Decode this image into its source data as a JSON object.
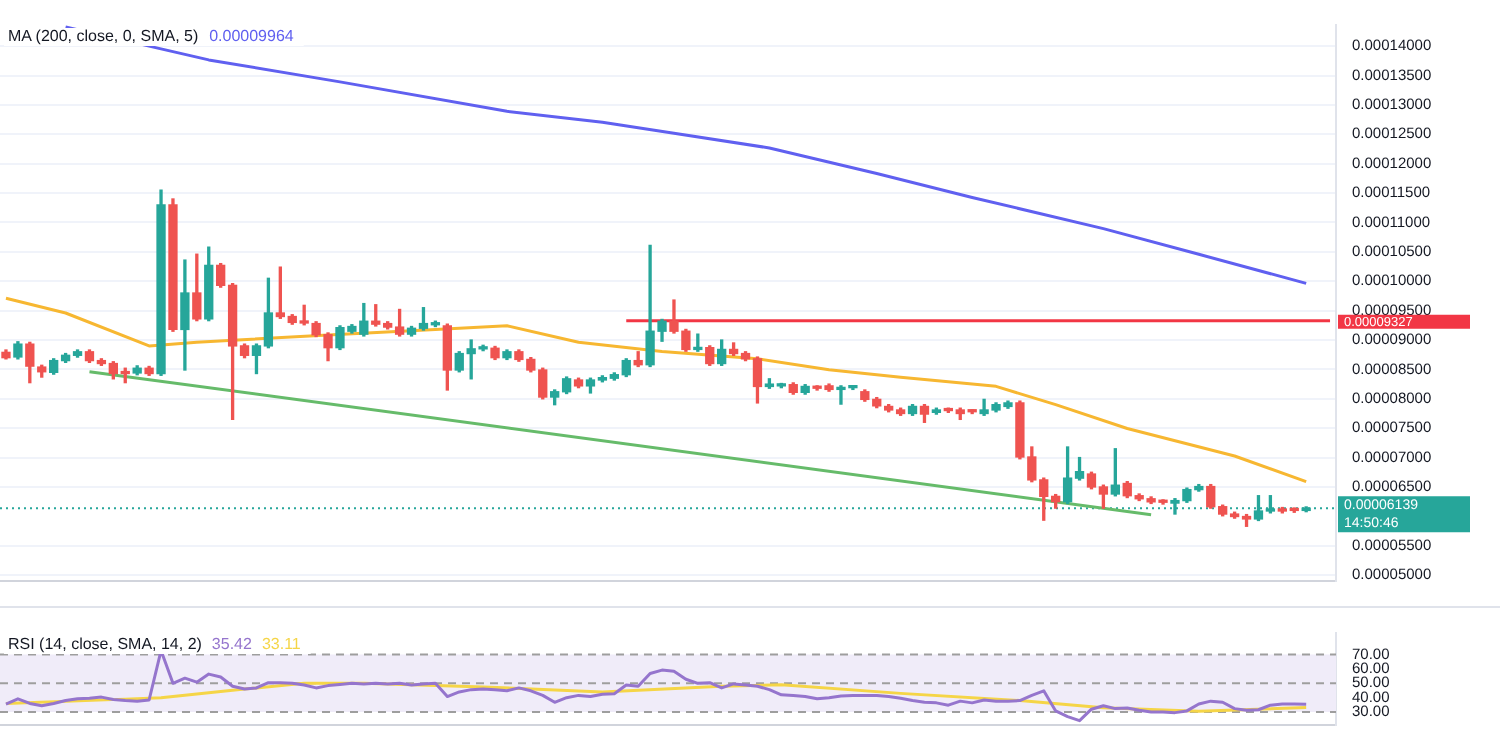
{
  "chart_data": [
    {
      "type": "candlestick",
      "categories": [
        null,
        null,
        null,
        null,
        null,
        null,
        null,
        null,
        null,
        null,
        null,
        null,
        null,
        null,
        null,
        null,
        null,
        null,
        null,
        null,
        null,
        null,
        null,
        null,
        null,
        null,
        null,
        null,
        null,
        null,
        null,
        null,
        null,
        null,
        null,
        null,
        null,
        null,
        null,
        null,
        null,
        null,
        null,
        null,
        null,
        null,
        null,
        null,
        null,
        null,
        null,
        null,
        null,
        null,
        null,
        null,
        null,
        null,
        null,
        null,
        null,
        null,
        null,
        null,
        null,
        null,
        null,
        null,
        null,
        null,
        null,
        null,
        null,
        null,
        null,
        null,
        null,
        null,
        null,
        null,
        null,
        null,
        null,
        null,
        null,
        null,
        null,
        null,
        null,
        null,
        null,
        null,
        null,
        null,
        null,
        null,
        null,
        null,
        null,
        null,
        null,
        null,
        null,
        null,
        null,
        null,
        null,
        null,
        null,
        null,
        null,
        null
      ],
      "ohlc": [
        [
          8.79e-05,
          8.83e-05,
          8.68e-05,
          8.7e-05
        ],
        [
          8.712e-05,
          8.97e-05,
          8.68e-05,
          8.93e-05
        ],
        [
          8.93e-05,
          8.96e-05,
          8.275e-05,
          8.556e-05
        ],
        [
          8.54e-05,
          8.57e-05,
          8.37e-05,
          8.46e-05
        ],
        [
          8.45e-05,
          8.68e-05,
          8.42e-05,
          8.65e-05
        ],
        [
          8.65e-05,
          8.77e-05,
          8.62e-05,
          8.74e-05
        ],
        [
          8.74e-05,
          8.83e-05,
          8.71e-05,
          8.8e-05
        ],
        [
          8.8e-05,
          8.83e-05,
          8.62e-05,
          8.65e-05
        ],
        [
          8.65e-05,
          8.68e-05,
          8.57e-05,
          8.6e-05
        ],
        [
          8.6e-05,
          8.63e-05,
          8.34e-05,
          8.43e-05
        ],
        [
          8.45e-05,
          8.52e-05,
          8.275e-05,
          8.43e-05
        ],
        [
          8.44e-05,
          8.56e-05,
          8.41e-05,
          8.52e-05
        ],
        [
          8.52e-05,
          8.55e-05,
          8.4e-05,
          8.43e-05
        ],
        [
          8.43e-05,
          0.0001155,
          8.4e-05,
          0.000113
        ],
        [
          0.000113,
          0.000114,
          9.15e-05,
          9.18e-05
        ],
        [
          9.18e-05,
          0.0001036,
          8.49e-05,
          9.8e-05
        ],
        [
          9.8e-05,
          0.0001046,
          9.33e-05,
          9.36e-05
        ],
        [
          9.36e-05,
          0.0001058,
          9.33e-05,
          0.0001027
        ],
        [
          0.0001027,
          0.000103,
          9.9e-05,
          9.93e-05
        ],
        [
          9.93e-05,
          9.96e-05,
          7.65e-05,
          8.9e-05
        ],
        [
          8.9e-05,
          8.93e-05,
          8.7e-05,
          8.74e-05
        ],
        [
          8.74e-05,
          8.93e-05,
          8.43e-05,
          8.9e-05
        ],
        [
          8.9e-05,
          0.0001005,
          8.87e-05,
          9.46e-05
        ],
        [
          9.46e-05,
          0.0001024,
          9.37e-05,
          9.4e-05
        ],
        [
          9.4e-05,
          9.43e-05,
          9.27e-05,
          9.3e-05
        ],
        [
          9.3e-05,
          9.59e-05,
          9.26e-05,
          9.29e-05
        ],
        [
          9.28e-05,
          9.31e-05,
          9.06e-05,
          9.09e-05
        ],
        [
          9.09e-05,
          9.12e-05,
          8.65e-05,
          8.87e-05
        ],
        [
          8.87e-05,
          9.24e-05,
          8.84e-05,
          9.21e-05
        ],
        [
          9.15e-05,
          9.26e-05,
          9.12e-05,
          9.23e-05
        ],
        [
          9.1e-05,
          9.62e-05,
          9.07e-05,
          9.32e-05
        ],
        [
          9.32e-05,
          9.6e-05,
          9.24e-05,
          9.27e-05
        ],
        [
          9.28e-05,
          9.31e-05,
          9.19e-05,
          9.22e-05
        ],
        [
          9.22e-05,
          9.52e-05,
          9.07e-05,
          9.1e-05
        ],
        [
          9.1e-05,
          9.23e-05,
          9.07e-05,
          9.2e-05
        ],
        [
          9.2e-05,
          9.55e-05,
          9.17e-05,
          9.28e-05
        ],
        [
          9.26e-05,
          9.32e-05,
          9.23e-05,
          9.29e-05
        ],
        [
          9.24e-05,
          9.27e-05,
          8.15e-05,
          8.49e-05
        ],
        [
          8.49e-05,
          8.8e-05,
          8.46e-05,
          8.77e-05
        ],
        [
          8.77e-05,
          9e-05,
          8.34e-05,
          8.85e-05
        ],
        [
          8.85e-05,
          8.91e-05,
          8.82e-05,
          8.88e-05
        ],
        [
          8.86e-05,
          8.89e-05,
          8.67e-05,
          8.7e-05
        ],
        [
          8.7e-05,
          8.83e-05,
          8.67e-05,
          8.8e-05
        ],
        [
          8.8e-05,
          8.83e-05,
          8.64e-05,
          8.67e-05
        ],
        [
          8.67e-05,
          8.7e-05,
          8.46e-05,
          8.49e-05
        ],
        [
          8.49e-05,
          8.52e-05,
          8e-05,
          8.03e-05
        ],
        [
          8.03e-05,
          8.15e-05,
          7.9e-05,
          8.12e-05
        ],
        [
          8.12e-05,
          8.37e-05,
          8.09e-05,
          8.34e-05
        ],
        [
          8.32e-05,
          8.35e-05,
          8.19e-05,
          8.22e-05
        ],
        [
          8.22e-05,
          8.35e-05,
          8.1e-05,
          8.32e-05
        ],
        [
          8.32e-05,
          8.39e-05,
          8.29e-05,
          8.36e-05
        ],
        [
          8.35e-05,
          8.44e-05,
          8.32e-05,
          8.41e-05
        ],
        [
          8.41e-05,
          8.68e-05,
          8.38e-05,
          8.65e-05
        ],
        [
          8.65e-05,
          8.8e-05,
          8.55e-05,
          8.58e-05
        ],
        [
          8.58e-05,
          0.0001061,
          8.55e-05,
          9.15e-05
        ],
        [
          9.15e-05,
          9.35e-05,
          8.98e-05,
          9.32e-05
        ],
        [
          9.32e-05,
          9.68e-05,
          9.12e-05,
          9.15e-05
        ],
        [
          9.15e-05,
          9.18e-05,
          8.81e-05,
          8.84e-05
        ],
        [
          8.84e-05,
          9.1e-05,
          8.81e-05,
          8.87e-05
        ],
        [
          8.87e-05,
          8.9e-05,
          8.57e-05,
          8.6e-05
        ],
        [
          8.6e-05,
          9e-05,
          8.57e-05,
          8.84e-05
        ],
        [
          8.84e-05,
          8.95e-05,
          8.74e-05,
          8.77e-05
        ],
        [
          8.77e-05,
          8.8e-05,
          8.65e-05,
          8.68e-05
        ],
        [
          8.68e-05,
          8.71e-05,
          7.93e-05,
          8.21e-05
        ],
        [
          8.21e-05,
          8.34e-05,
          8.18e-05,
          8.25e-05
        ],
        [
          8.22e-05,
          8.26e-05,
          8.19e-05,
          8.23e-05
        ],
        [
          8.24e-05,
          8.27e-05,
          8.08e-05,
          8.11e-05
        ],
        [
          8.11e-05,
          8.24e-05,
          8.08e-05,
          8.21e-05
        ],
        [
          8.19e-05,
          8.22e-05,
          8.15e-05,
          8.18e-05
        ],
        [
          8.22e-05,
          8.25e-05,
          8.13e-05,
          8.16e-05
        ],
        [
          8.16e-05,
          8.22e-05,
          7.91e-05,
          8.19e-05
        ],
        [
          8.19e-05,
          8.22e-05,
          8.16e-05,
          8.19e-05
        ],
        [
          8.12e-05,
          8.15e-05,
          7.96e-05,
          7.99e-05
        ],
        [
          7.99e-05,
          8.02e-05,
          7.85e-05,
          7.88e-05
        ],
        [
          7.87e-05,
          7.9e-05,
          7.78e-05,
          7.81e-05
        ],
        [
          7.81e-05,
          7.84e-05,
          7.72e-05,
          7.75e-05
        ],
        [
          7.75e-05,
          7.9e-05,
          7.72e-05,
          7.87e-05
        ],
        [
          7.87e-05,
          7.9e-05,
          7.6e-05,
          7.74e-05
        ],
        [
          7.77e-05,
          7.84e-05,
          7.74e-05,
          7.81e-05
        ],
        [
          7.81e-05,
          7.84e-05,
          7.77e-05,
          7.8e-05
        ],
        [
          7.81e-05,
          7.84e-05,
          7.65e-05,
          7.75e-05
        ],
        [
          7.79e-05,
          7.81e-05,
          7.75e-05,
          7.78e-05
        ],
        [
          7.75e-05,
          7.99e-05,
          7.72e-05,
          7.81e-05
        ],
        [
          7.81e-05,
          7.93e-05,
          7.78e-05,
          7.9e-05
        ],
        [
          7.87e-05,
          7.96e-05,
          7.84e-05,
          7.93e-05
        ],
        [
          7.93e-05,
          7.96e-05,
          6.98e-05,
          7.01e-05
        ],
        [
          7.01e-05,
          7.18e-05,
          6.59e-05,
          6.62e-05
        ],
        [
          6.62e-05,
          6.65e-05,
          5.935e-05,
          6.34e-05
        ],
        [
          6.34e-05,
          6.37e-05,
          6.14e-05,
          6.25e-05
        ],
        [
          6.25e-05,
          7.18e-05,
          6.22e-05,
          6.65e-05
        ],
        [
          6.65e-05,
          7e-05,
          6.62e-05,
          6.76e-05
        ],
        [
          6.72e-05,
          6.75e-05,
          6.47e-05,
          6.5e-05
        ],
        [
          6.5e-05,
          6.53e-05,
          6.14e-05,
          6.38e-05
        ],
        [
          6.38e-05,
          7.15e-05,
          6.35e-05,
          6.53e-05
        ],
        [
          6.559e-05,
          6.59e-05,
          6.32e-05,
          6.351e-05
        ],
        [
          6.351e-05,
          6.38e-05,
          6.27e-05,
          6.299e-05
        ],
        [
          6.299e-05,
          6.33e-05,
          6.22e-05,
          6.247e-05
        ],
        [
          6.247e-05,
          6.28e-05,
          6.21e-05,
          6.24e-05
        ],
        [
          6.226e-05,
          6.3e-05,
          6.04e-05,
          6.268e-05
        ],
        [
          6.268e-05,
          6.48e-05,
          6.24e-05,
          6.455e-05
        ],
        [
          6.455e-05,
          6.54e-05,
          6.43e-05,
          6.507e-05
        ],
        [
          6.507e-05,
          6.54e-05,
          6.14e-05,
          6.164e-05
        ],
        [
          6.164e-05,
          6.19e-05,
          6.01e-05,
          6.039e-05
        ],
        [
          6.039e-05,
          6.07e-05,
          5.97e-05,
          5.997e-05
        ],
        [
          5.997e-05,
          6.03e-05,
          5.831e-05,
          5.956e-05
        ],
        [
          5.956e-05,
          6.351e-05,
          5.93e-05,
          6.091e-05
        ],
        [
          6.091e-05,
          6.351e-05,
          6.06e-05,
          6.112e-05
        ],
        [
          6.122e-05,
          6.15e-05,
          6.06e-05,
          6.091e-05
        ],
        [
          6.112e-05,
          6.14e-05,
          6.07e-05,
          6.101e-05
        ],
        [
          6.101e-05,
          6.16e-05,
          6.08e-05,
          6.139e-05
        ],
        null,
        null
      ],
      "colors": [
        "#ef5350",
        "#26a69a",
        "#ef5350",
        "#ef5350",
        "#26a69a",
        "#26a69a",
        "#26a69a",
        "#ef5350",
        "#ef5350",
        "#ef5350",
        "#ef5350",
        "#26a69a",
        "#ef5350",
        "#26a69a",
        "#ef5350",
        "#26a69a",
        "#ef5350",
        "#26a69a",
        "#ef5350",
        "#ef5350",
        "#ef5350",
        "#26a69a",
        "#26a69a",
        "#ef5350",
        "#ef5350",
        "#ef5350",
        "#ef5350",
        "#ef5350",
        "#26a69a",
        "#26a69a",
        "#26a69a",
        "#ef5350",
        "#ef5350",
        "#ef5350",
        "#26a69a",
        "#26a69a",
        "#26a69a",
        "#ef5350",
        "#26a69a",
        "#26a69a",
        "#26a69a",
        "#ef5350",
        "#26a69a",
        "#ef5350",
        "#ef5350",
        "#ef5350",
        "#26a69a",
        "#26a69a",
        "#ef5350",
        "#26a69a",
        "#26a69a",
        "#26a69a",
        "#26a69a",
        "#ef5350",
        "#26a69a",
        "#26a69a",
        "#ef5350",
        "#ef5350",
        "#26a69a",
        "#ef5350",
        "#26a69a",
        "#ef5350",
        "#ef5350",
        "#ef5350",
        "#26a69a",
        "#26a69a",
        "#ef5350",
        "#26a69a",
        "#ef5350",
        "#ef5350",
        "#26a69a",
        "#26a69a",
        "#ef5350",
        "#ef5350",
        "#ef5350",
        "#ef5350",
        "#26a69a",
        "#ef5350",
        "#26a69a",
        "#ef5350",
        "#ef5350",
        "#ef5350",
        "#26a69a",
        "#26a69a",
        "#26a69a",
        "#ef5350",
        "#ef5350",
        "#ef5350",
        "#ef5350",
        "#26a69a",
        "#26a69a",
        "#ef5350",
        "#ef5350",
        "#26a69a",
        "#ef5350",
        "#ef5350",
        "#ef5350",
        "#ef5350",
        "#26a69a",
        "#26a69a",
        "#26a69a",
        "#ef5350",
        "#ef5350",
        "#ef5350",
        "#ef5350",
        "#26a69a",
        "#26a69a",
        "#ef5350",
        "#ef5350",
        "#26a69a",
        null,
        null
      ],
      "series": [
        {
          "type": "line",
          "name": "MA (200, close, 0, SMA, 5)",
          "color": "#6060f0",
          "values": [
            null,
            null,
            null,
            null,
            null,
            0.00014328,
            null,
            null,
            null,
            null,
            null,
            null,
            null,
            null,
            null,
            null,
            null,
            0.00013766,
            null,
            null,
            null,
            null,
            null,
            null,
            null,
            null,
            null,
            null,
            0.00013392,
            null,
            null,
            null,
            null,
            null,
            null,
            null,
            null,
            null,
            null,
            null,
            null,
            null,
            0.00012892,
            null,
            null,
            null,
            null,
            null,
            null,
            null,
            0.00012705,
            null,
            null,
            null,
            null,
            null,
            0.00012518,
            null,
            null,
            null,
            null,
            null,
            null,
            null,
            0.00012268,
            null,
            null,
            null,
            null,
            null,
            null,
            null,
            null,
            0.00011832,
            null,
            null,
            null,
            null,
            null,
            null,
            null,
            0.00011426,
            null,
            null,
            null,
            null,
            null,
            null,
            null,
            null,
            null,
            null,
            0.00010896,
            null,
            null,
            null,
            null,
            null,
            null,
            null,
            0.00010459,
            null,
            null,
            null,
            null,
            null,
            null,
            null,
            null,
            9.964e-05,
            null,
            null
          ]
        },
        {
          "type": "line",
          "color": "#f7b731",
          "values": [
            9.71e-05,
            null,
            null,
            null,
            null,
            9.46e-05,
            null,
            null,
            null,
            null,
            null,
            null,
            8.9e-05,
            null,
            null,
            null,
            8.961e-05,
            null,
            null,
            null,
            null,
            null,
            null,
            null,
            null,
            null,
            null,
            9.086e-05,
            null,
            null,
            null,
            null,
            null,
            null,
            null,
            null,
            9.18e-05,
            null,
            null,
            null,
            null,
            null,
            9.242e-05,
            null,
            null,
            null,
            null,
            null,
            8.961e-05,
            null,
            null,
            null,
            null,
            null,
            null,
            8.805e-05,
            null,
            null,
            null,
            null,
            null,
            null,
            null,
            8.68e-05,
            null,
            null,
            null,
            null,
            null,
            8.493e-05,
            null,
            null,
            null,
            null,
            null,
            8.368e-05,
            null,
            null,
            null,
            null,
            null,
            null,
            null,
            8.212e-05,
            null,
            null,
            null,
            null,
            7.9e-05,
            null,
            null,
            null,
            null,
            null,
            7.495e-05,
            null,
            null,
            null,
            null,
            null,
            null,
            null,
            null,
            7.027e-05,
            null,
            null,
            null,
            null,
            null,
            6.59e-05,
            null,
            null
          ]
        },
        {
          "type": "line",
          "color": "#66bb6a",
          "values": [
            null,
            null,
            null,
            null,
            null,
            null,
            null,
            8.462e-05,
            null,
            null,
            null,
            null,
            null,
            null,
            null,
            null,
            null,
            null,
            null,
            null,
            null,
            null,
            null,
            null,
            null,
            null,
            null,
            null,
            null,
            null,
            null,
            null,
            null,
            null,
            null,
            null,
            null,
            null,
            null,
            null,
            null,
            null,
            null,
            null,
            null,
            null,
            null,
            null,
            null,
            null,
            null,
            null,
            null,
            null,
            null,
            null,
            null,
            null,
            null,
            null,
            null,
            null,
            null,
            null,
            null,
            null,
            null,
            null,
            null,
            null,
            null,
            null,
            null,
            null,
            null,
            null,
            null,
            null,
            null,
            null,
            null,
            null,
            null,
            null,
            null,
            null,
            null,
            null,
            null,
            null,
            null,
            null,
            null,
            null,
            null,
            null,
            6.028e-05,
            null,
            null,
            null,
            null,
            null,
            null,
            null,
            null,
            null,
            null,
            null,
            null,
            null,
            null,
            null
          ]
        },
        {
          "type": "line",
          "color": "#f23645",
          "values": [
            null,
            null,
            null,
            null,
            null,
            null,
            null,
            null,
            null,
            null,
            null,
            null,
            null,
            null,
            null,
            null,
            null,
            null,
            null,
            null,
            null,
            null,
            null,
            null,
            null,
            null,
            null,
            null,
            null,
            null,
            null,
            null,
            null,
            null,
            null,
            null,
            null,
            null,
            null,
            null,
            null,
            null,
            null,
            null,
            null,
            null,
            null,
            null,
            null,
            null,
            null,
            null,
            9.327e-05,
            9.327e-05,
            9.327e-05,
            9.327e-05,
            9.327e-05,
            9.327e-05,
            9.327e-05,
            9.327e-05,
            9.327e-05,
            9.327e-05,
            9.327e-05,
            9.327e-05,
            9.327e-05,
            9.327e-05,
            9.327e-05,
            9.327e-05,
            9.327e-05,
            9.327e-05,
            9.327e-05,
            9.327e-05,
            9.327e-05,
            9.327e-05,
            9.327e-05,
            9.327e-05,
            9.327e-05,
            9.327e-05,
            9.327e-05,
            9.327e-05,
            9.327e-05,
            9.327e-05,
            9.327e-05,
            9.327e-05,
            9.327e-05,
            9.327e-05,
            9.327e-05,
            9.327e-05,
            9.327e-05,
            9.327e-05,
            9.327e-05,
            9.327e-05,
            9.327e-05,
            9.327e-05,
            9.327e-05,
            9.327e-05,
            9.327e-05,
            9.327e-05,
            9.327e-05,
            9.327e-05,
            9.327e-05,
            9.327e-05,
            9.327e-05,
            9.327e-05,
            9.327e-05,
            9.327e-05,
            9.327e-05,
            9.327e-05,
            9.327e-05,
            9.327e-05,
            9.327e-05,
            9.327e-05
          ],
          "value_labels": [
            null,
            null,
            null,
            null,
            null,
            null,
            null,
            null,
            null,
            null,
            null,
            null,
            null,
            null,
            null,
            null,
            null,
            null,
            null,
            null,
            null,
            null,
            null,
            null,
            null,
            null,
            null,
            null,
            null,
            null,
            null,
            null,
            null,
            null,
            null,
            null,
            null,
            null,
            null,
            null,
            null,
            null,
            null,
            null,
            null,
            null,
            null,
            null,
            null,
            null,
            null,
            null,
            null,
            null,
            null,
            null,
            null,
            null,
            null,
            null,
            null,
            null,
            null,
            null,
            null,
            null,
            null,
            null,
            null,
            null,
            null,
            null,
            null,
            null,
            null,
            null,
            null,
            null,
            null,
            null,
            null,
            null,
            null,
            null,
            null,
            null,
            null,
            null,
            null,
            null,
            null,
            null,
            null,
            null,
            null,
            null,
            null,
            null,
            null,
            null,
            null,
            null,
            null,
            null,
            null,
            null,
            null,
            null,
            null,
            null,
            null,
            "0.00009327"
          ]
        }
      ],
      "ylim": [
        4.9e-05,
        0.0001436
      ],
      "yticks": [
        {
          "value": 5e-05,
          "label": "0.00005000"
        },
        {
          "value": 5.5e-05,
          "label": "0.00005500"
        },
        {
          "value": 6.5e-05,
          "label": "0.00006500"
        },
        {
          "value": 7e-05,
          "label": "0.00007000"
        },
        {
          "value": 7.5e-05,
          "label": "0.00007500"
        },
        {
          "value": 8e-05,
          "label": "0.00008000"
        },
        {
          "value": 8.5e-05,
          "label": "0.00008500"
        },
        {
          "value": 9e-05,
          "label": "0.00009000"
        },
        {
          "value": 9.5e-05,
          "label": "0.00009500"
        },
        {
          "value": 0.0001,
          "label": "0.00010000"
        },
        {
          "value": 0.000105,
          "label": "0.00010500"
        },
        {
          "value": 0.00011,
          "label": "0.00011000"
        },
        {
          "value": 0.000115,
          "label": "0.00011500"
        },
        {
          "value": 0.00012,
          "label": "0.00012000"
        },
        {
          "value": 0.000125,
          "label": "0.00012500"
        },
        {
          "value": 0.00013,
          "label": "0.00013000"
        },
        {
          "value": 0.000135,
          "label": "0.00013500"
        },
        {
          "value": 0.00014,
          "label": "0.00014000"
        }
      ],
      "grid": "y",
      "legend": "top left",
      "ref_lines": [
        {
          "axis": "y",
          "value": 6.139e-05,
          "label": "0.00006139\n14:50:46",
          "color": "#26a69a",
          "line_style": "dotted"
        }
      ],
      "annotations": [
        "0.00009964"
      ]
    },
    {
      "type": "line",
      "title": "RSI (14, close, SMA, 14, 2)",
      "categories": [
        null,
        null,
        null,
        null,
        null,
        null,
        null,
        null,
        null,
        null,
        null,
        null,
        null,
        null,
        null,
        null,
        null,
        null,
        null,
        null,
        null,
        null,
        null,
        null,
        null,
        null,
        null,
        null,
        null,
        null,
        null,
        null,
        null,
        null,
        null,
        null,
        null,
        null,
        null,
        null,
        null,
        null,
        null,
        null,
        null,
        null,
        null,
        null,
        null,
        null,
        null,
        null,
        null,
        null,
        null,
        null,
        null,
        null,
        null,
        null,
        null,
        null,
        null,
        null,
        null,
        null,
        null,
        null,
        null,
        null,
        null,
        null,
        null,
        null,
        null,
        null,
        null,
        null,
        null,
        null,
        null,
        null,
        null,
        null,
        null,
        null,
        null,
        null,
        null,
        null,
        null,
        null,
        null,
        null,
        null,
        null,
        null,
        null,
        null,
        null,
        null,
        null,
        null,
        null,
        null,
        null,
        null,
        null,
        null,
        null,
        null,
        null
      ],
      "series": [
        {
          "color": "#9575cd",
          "values": [
            35.6,
            39.2,
            36,
            34.4,
            36,
            38,
            39.2,
            39.6,
            40.4,
            38.8,
            38,
            37.6,
            38.4,
            72.8,
            50,
            53.6,
            50.8,
            56.4,
            54.4,
            48,
            46,
            46.8,
            50.4,
            50.4,
            50,
            48.8,
            46.8,
            48.4,
            49.2,
            50,
            49.6,
            50,
            49.6,
            50,
            48.8,
            49.6,
            50,
            40.8,
            44,
            45.6,
            46,
            45.6,
            44.8,
            46.8,
            44.8,
            41.6,
            36.8,
            40,
            41.6,
            40.8,
            42.4,
            42.8,
            48.8,
            48,
            56.8,
            59.2,
            58.4,
            52.8,
            50,
            50.4,
            46.8,
            49.6,
            48.8,
            48,
            45.6,
            42,
            41.6,
            40.8,
            39.2,
            40,
            41.2,
            41.6,
            41.6,
            41.6,
            40.8,
            39.6,
            38,
            36.8,
            36.4,
            34.8,
            37.6,
            36.4,
            38.4,
            37.6,
            37.6,
            38,
            41.6,
            44.8,
            30.8,
            26.8,
            24,
            32,
            34.4,
            32.4,
            32.8,
            31.2,
            30,
            30,
            29.6,
            30.8,
            35.6,
            37.6,
            36.8,
            32.4,
            31.2,
            31.6,
            34.8,
            35.6,
            35.6,
            35.42,
            null,
            null
          ]
        },
        {
          "color": "#f5d547",
          "values": [
            36,
            null,
            null,
            null,
            null,
            null,
            null,
            null,
            null,
            null,
            39,
            null,
            null,
            40,
            null,
            null,
            null,
            null,
            null,
            null,
            46,
            null,
            null,
            null,
            null,
            50,
            null,
            null,
            null,
            null,
            50,
            null,
            null,
            null,
            null,
            null,
            null,
            null,
            null,
            null,
            47.5,
            null,
            null,
            null,
            null,
            null,
            null,
            null,
            null,
            null,
            44,
            null,
            null,
            null,
            null,
            null,
            null,
            null,
            null,
            null,
            48,
            null,
            null,
            null,
            null,
            49,
            null,
            null,
            null,
            null,
            null,
            null,
            null,
            null,
            null,
            43,
            null,
            null,
            null,
            null,
            null,
            null,
            null,
            null,
            null,
            38,
            null,
            null,
            null,
            null,
            null,
            null,
            33,
            null,
            null,
            null,
            null,
            null,
            null,
            null,
            30.5,
            null,
            null,
            null,
            null,
            null,
            null,
            null,
            null,
            33.11,
            null,
            null
          ]
        }
      ],
      "ylim": [
        21,
        85
      ],
      "yticks": [
        {
          "value": 30,
          "label": "30.00"
        },
        {
          "value": 40,
          "label": "40.00"
        },
        {
          "value": 50,
          "label": "50.00"
        },
        {
          "value": 60,
          "label": "60.00"
        },
        {
          "value": 70,
          "label": "70.00"
        }
      ],
      "bands": [
        {
          "axis": "y",
          "from": 30,
          "to": 70,
          "color": "#f0ecf9"
        }
      ],
      "ref_lines": [
        {
          "axis": "y",
          "value": 70,
          "color": "#9e9e9e",
          "line_style": "dashed"
        },
        {
          "axis": "y",
          "value": 50,
          "color": "#9e9e9e",
          "line_style": "dashed"
        },
        {
          "axis": "y",
          "value": 30,
          "color": "#9e9e9e",
          "line_style": "dashed"
        }
      ],
      "annotations": [
        "35.42",
        "33.11"
      ]
    }
  ]
}
